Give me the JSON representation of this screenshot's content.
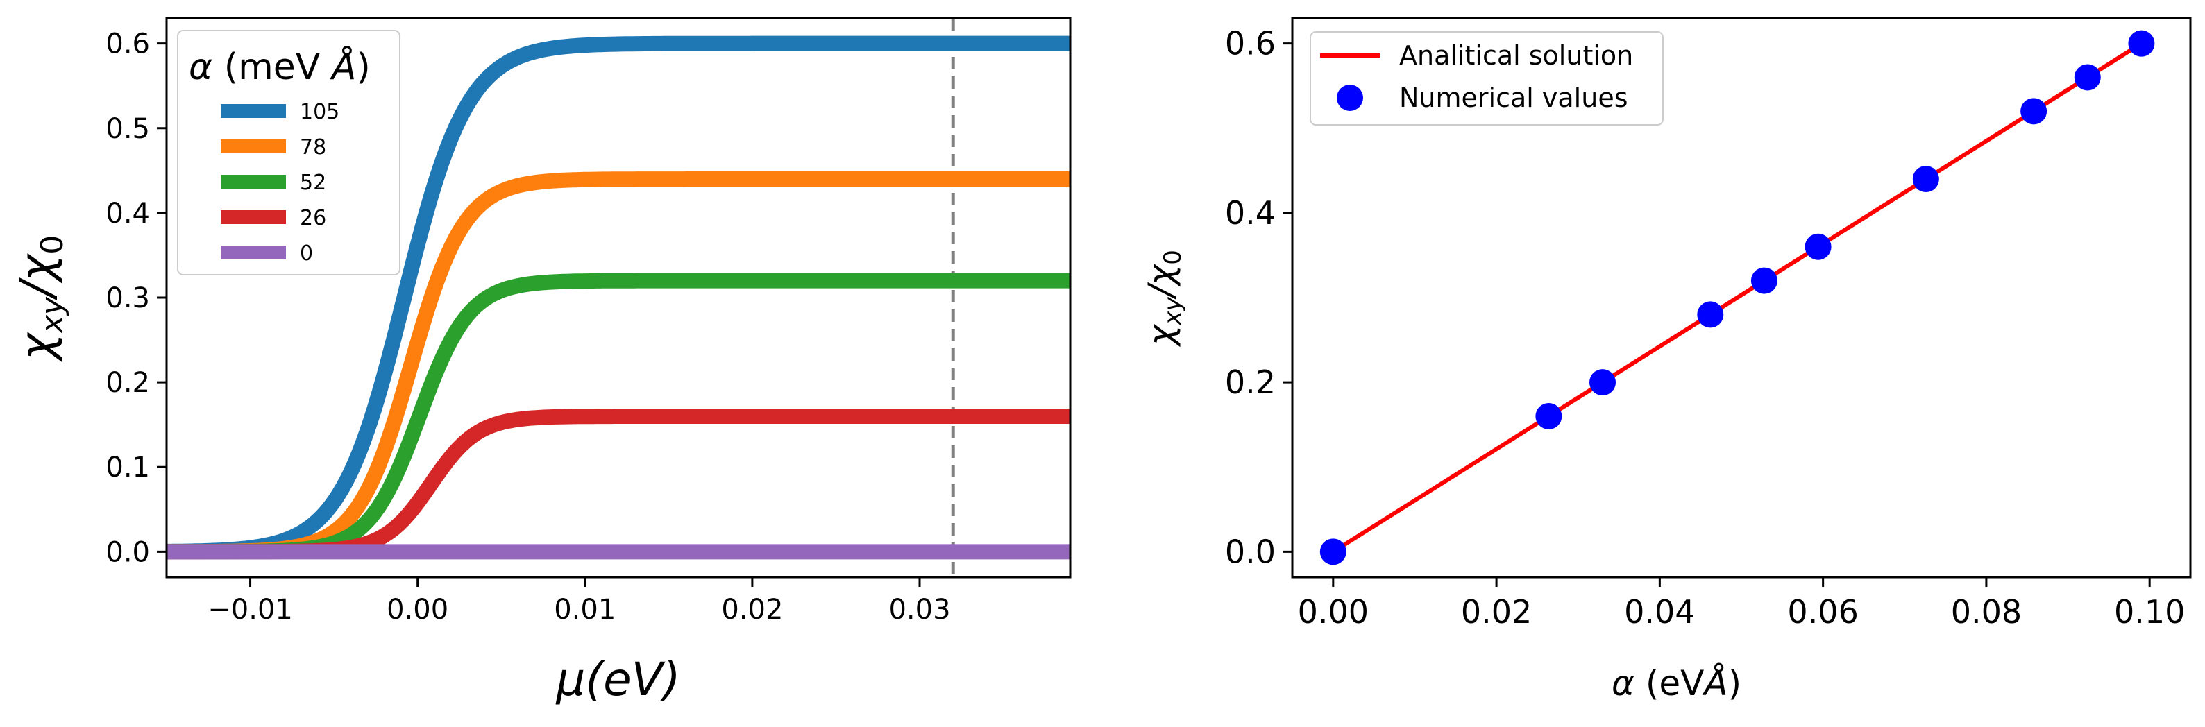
{
  "chart_data": [
    {
      "type": "line",
      "title": "",
      "xlabel": "μ(eV)",
      "ylabel": "χxy/χ0",
      "xlim": [
        -0.015,
        0.039
      ],
      "ylim": [
        -0.03,
        0.63
      ],
      "xticks": [
        -0.01,
        0.0,
        0.01,
        0.02,
        0.03
      ],
      "xtick_labels": [
        "−0.01",
        "0.00",
        "0.01",
        "0.02",
        "0.03"
      ],
      "yticks": [
        0.0,
        0.1,
        0.2,
        0.3,
        0.4,
        0.5,
        0.6
      ],
      "ytick_labels": [
        "0.0",
        "0.1",
        "0.2",
        "0.3",
        "0.4",
        "0.5",
        "0.6"
      ],
      "legend": {
        "title": "α (meV Å)",
        "placement": "top-left",
        "entries": [
          "105",
          "78",
          "52",
          "26",
          "0"
        ]
      },
      "vline": {
        "x": 0.032,
        "style": "dashed",
        "color": "#808080"
      },
      "series": [
        {
          "name": "105",
          "plateau": 0.6,
          "center": -0.0008,
          "width": 0.0019,
          "color": "#1f77b4"
        },
        {
          "name": "78",
          "plateau": 0.44,
          "center": -0.0004,
          "width": 0.0016,
          "color": "#ff7f0e"
        },
        {
          "name": "52",
          "plateau": 0.32,
          "center": 0.0001,
          "width": 0.0015,
          "color": "#2ca02c"
        },
        {
          "name": "26",
          "plateau": 0.16,
          "center": 0.0008,
          "width": 0.0014,
          "color": "#d62728"
        },
        {
          "name": "0",
          "plateau": 0.0,
          "center": 0.0,
          "width": 0.0015,
          "color": "#9467bd"
        }
      ]
    },
    {
      "type": "scatter",
      "title": "",
      "xlabel": "α (eVÅ)",
      "ylabel": "χxy/χ0",
      "xlim": [
        -0.005,
        0.105
      ],
      "ylim": [
        -0.03,
        0.63
      ],
      "xticks": [
        0.0,
        0.02,
        0.04,
        0.06,
        0.08,
        0.1
      ],
      "xtick_labels": [
        "0.00",
        "0.02",
        "0.04",
        "0.06",
        "0.08",
        "0.10"
      ],
      "yticks": [
        0.0,
        0.2,
        0.4,
        0.6
      ],
      "ytick_labels": [
        "0.0",
        "0.2",
        "0.4",
        "0.6"
      ],
      "legend": {
        "placement": "top-left",
        "entries": [
          "Analitical solution",
          "Numerical values"
        ]
      },
      "line": {
        "name": "Analitical solution",
        "x": [
          0.0,
          0.099
        ],
        "y": [
          0.0,
          0.6
        ],
        "color": "#ff0000"
      },
      "points": {
        "name": "Numerical values",
        "color": "#0000ff",
        "x": [
          0.0,
          0.0264,
          0.033,
          0.0462,
          0.0528,
          0.0594,
          0.0726,
          0.0858,
          0.0924,
          0.099
        ],
        "y": [
          0.0,
          0.16,
          0.2,
          0.28,
          0.32,
          0.36,
          0.44,
          0.52,
          0.56,
          0.6
        ]
      }
    }
  ]
}
